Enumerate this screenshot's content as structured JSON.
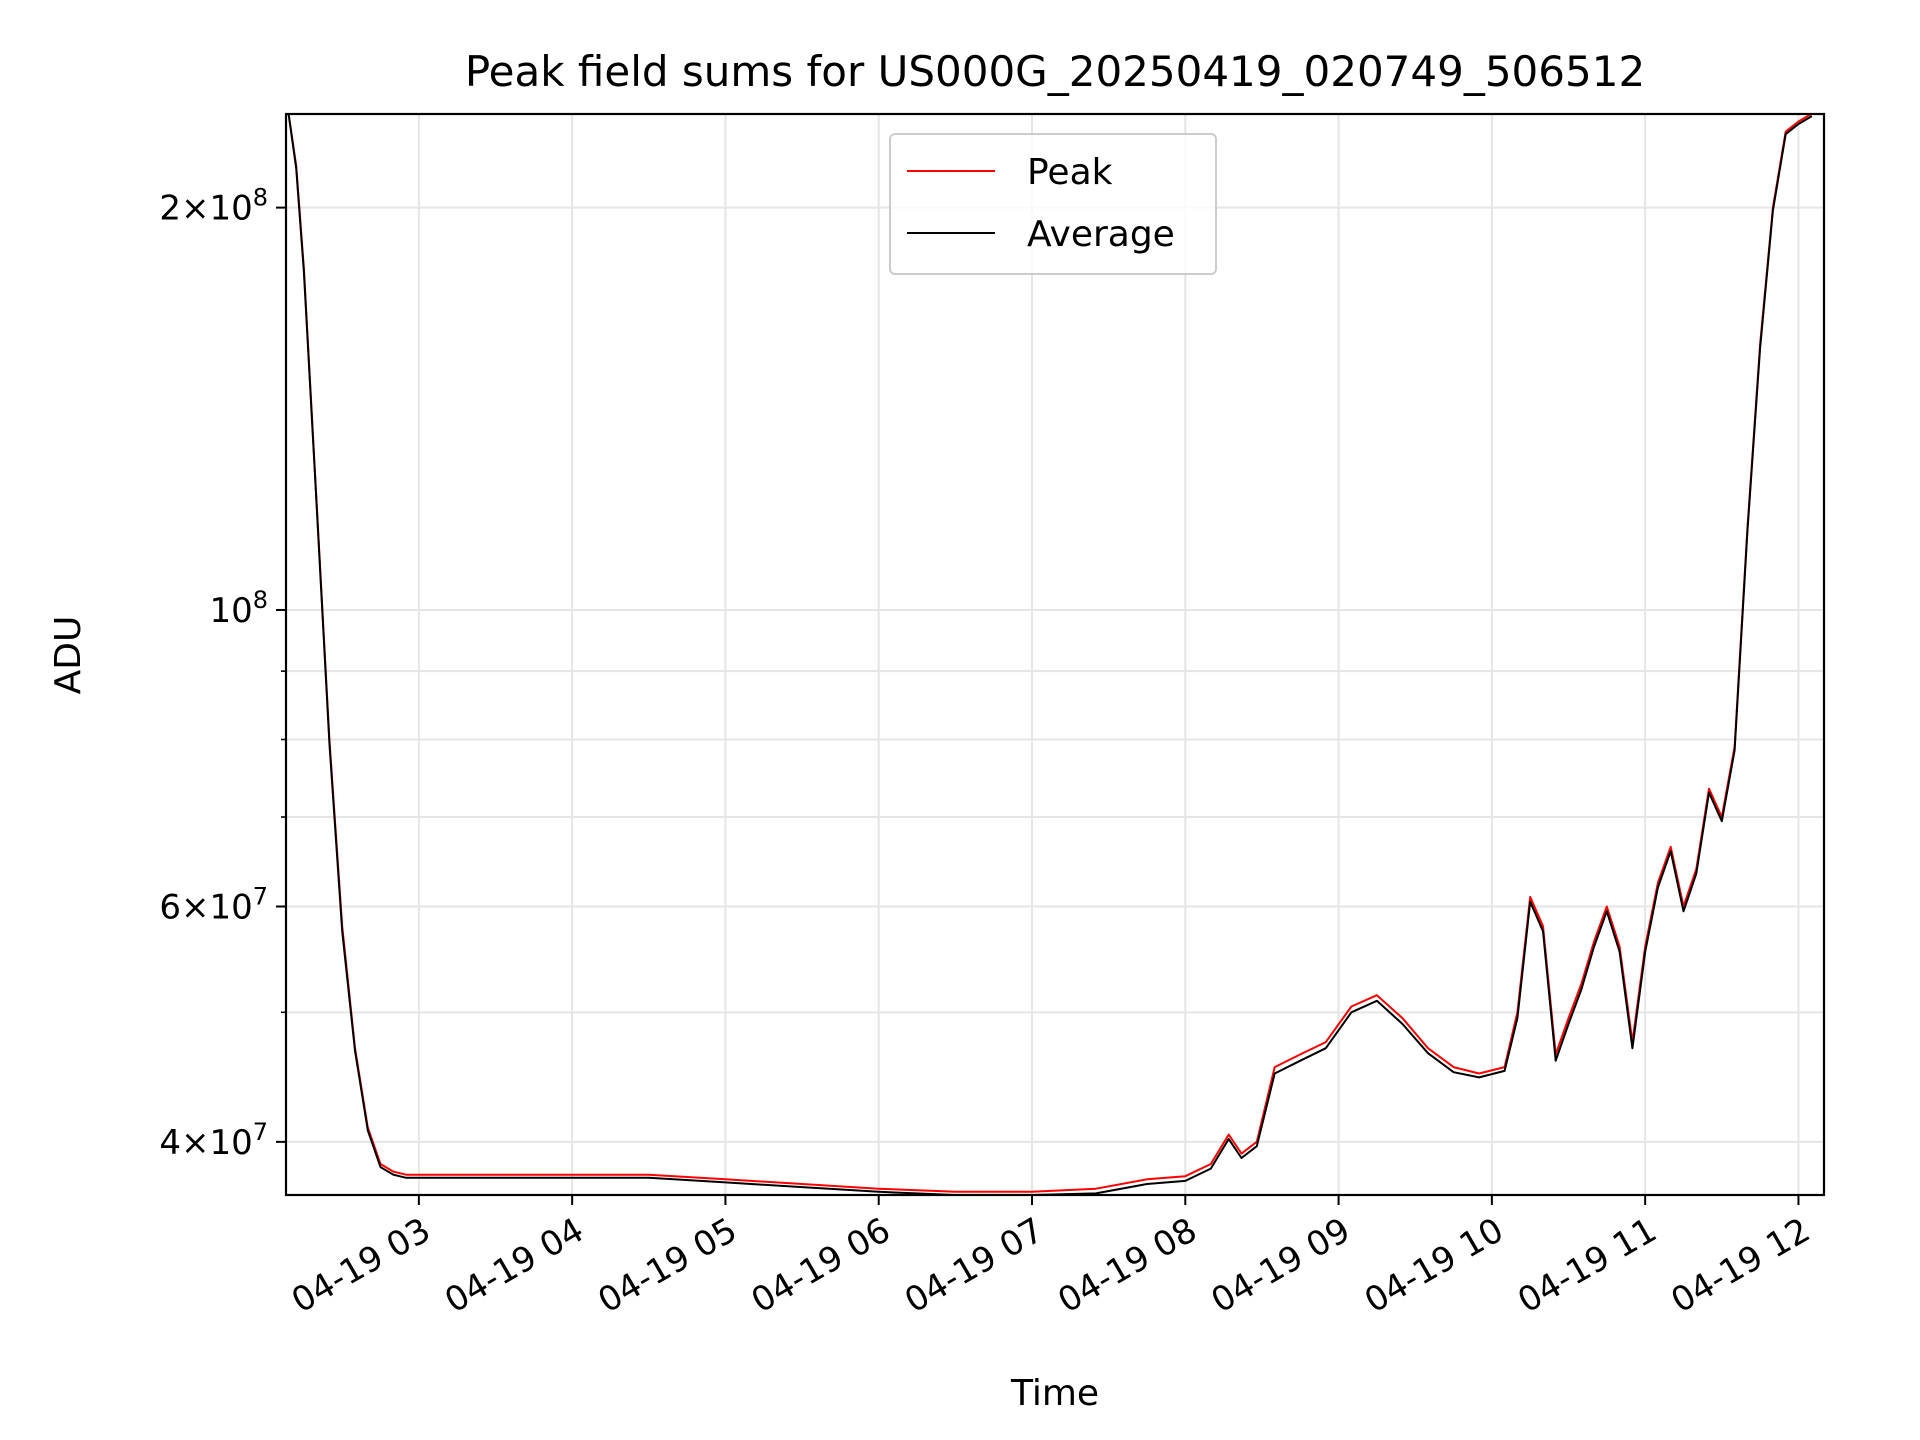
{
  "chart_data": {
    "type": "line",
    "title": "Peak field sums for US000G_20250419_020749_506512",
    "xlabel": "Time",
    "ylabel": "ADU",
    "yscale": "log",
    "ylim": [
      36500000,
      235000000
    ],
    "xlim": [
      "2025-04-19 02:08",
      "2025-04-19 12:10"
    ],
    "grid": true,
    "legend_position": "upper center",
    "x_ticks": [
      {
        "t": "2025-04-19 03:00",
        "label": "04-19 03"
      },
      {
        "t": "2025-04-19 04:00",
        "label": "04-19 04"
      },
      {
        "t": "2025-04-19 05:00",
        "label": "04-19 05"
      },
      {
        "t": "2025-04-19 06:00",
        "label": "04-19 06"
      },
      {
        "t": "2025-04-19 07:00",
        "label": "04-19 07"
      },
      {
        "t": "2025-04-19 08:00",
        "label": "04-19 08"
      },
      {
        "t": "2025-04-19 09:00",
        "label": "04-19 09"
      },
      {
        "t": "2025-04-19 10:00",
        "label": "04-19 10"
      },
      {
        "t": "2025-04-19 11:00",
        "label": "04-19 11"
      },
      {
        "t": "2025-04-19 12:00",
        "label": "04-19 12"
      }
    ],
    "y_ticks": [
      {
        "value": 40000000,
        "base": "4",
        "exp": "7"
      },
      {
        "value": 60000000,
        "base": "6",
        "exp": "7"
      },
      {
        "value": 100000000,
        "base": "",
        "exp": "8"
      },
      {
        "value": 200000000,
        "base": "2",
        "exp": "8"
      }
    ],
    "y_minor_ticks": [
      50000000,
      70000000,
      80000000,
      90000000,
      300000000
    ],
    "series": [
      {
        "name": "Peak",
        "color": "#ff0000",
        "x": [
          "2025-04-19 02:09",
          "2025-04-19 02:12",
          "2025-04-19 02:15",
          "2025-04-19 02:20",
          "2025-04-19 02:25",
          "2025-04-19 02:30",
          "2025-04-19 02:35",
          "2025-04-19 02:40",
          "2025-04-19 02:45",
          "2025-04-19 02:50",
          "2025-04-19 02:55",
          "2025-04-19 03:00",
          "2025-04-19 03:30",
          "2025-04-19 04:00",
          "2025-04-19 04:30",
          "2025-04-19 05:00",
          "2025-04-19 05:30",
          "2025-04-19 06:00",
          "2025-04-19 06:30",
          "2025-04-19 07:00",
          "2025-04-19 07:25",
          "2025-04-19 07:45",
          "2025-04-19 08:00",
          "2025-04-19 08:10",
          "2025-04-19 08:17",
          "2025-04-19 08:22",
          "2025-04-19 08:28",
          "2025-04-19 08:35",
          "2025-04-19 08:45",
          "2025-04-19 08:55",
          "2025-04-19 09:05",
          "2025-04-19 09:15",
          "2025-04-19 09:25",
          "2025-04-19 09:35",
          "2025-04-19 09:45",
          "2025-04-19 09:55",
          "2025-04-19 10:05",
          "2025-04-19 10:10",
          "2025-04-19 10:15",
          "2025-04-19 10:20",
          "2025-04-19 10:25",
          "2025-04-19 10:30",
          "2025-04-19 10:35",
          "2025-04-19 10:40",
          "2025-04-19 10:45",
          "2025-04-19 10:50",
          "2025-04-19 10:55",
          "2025-04-19 11:00",
          "2025-04-19 11:05",
          "2025-04-19 11:10",
          "2025-04-19 11:15",
          "2025-04-19 11:20",
          "2025-04-19 11:25",
          "2025-04-19 11:30",
          "2025-04-19 11:35",
          "2025-04-19 11:40",
          "2025-04-19 11:45",
          "2025-04-19 11:50",
          "2025-04-19 11:55",
          "2025-04-19 12:00",
          "2025-04-19 12:05"
        ],
        "y": [
          235000000,
          215000000,
          180000000,
          120000000,
          80000000,
          58000000,
          47000000,
          41000000,
          38500000,
          38000000,
          37800000,
          37800000,
          37800000,
          37800000,
          37800000,
          37500000,
          37200000,
          36900000,
          36700000,
          36700000,
          36900000,
          37500000,
          37700000,
          38500000,
          40500000,
          39200000,
          40000000,
          45500000,
          46500000,
          47500000,
          50500000,
          51500000,
          49500000,
          47000000,
          45500000,
          45000000,
          45500000,
          50000000,
          61000000,
          58000000,
          46500000,
          49500000,
          52500000,
          56500000,
          60000000,
          56000000,
          47500000,
          56000000,
          62500000,
          66500000,
          60000000,
          64000000,
          73500000,
          70000000,
          79000000,
          115000000,
          158000000,
          200000000,
          228000000,
          232000000,
          235000000
        ]
      },
      {
        "name": "Average",
        "color": "#000000",
        "x": [
          "2025-04-19 02:09",
          "2025-04-19 02:12",
          "2025-04-19 02:15",
          "2025-04-19 02:20",
          "2025-04-19 02:25",
          "2025-04-19 02:30",
          "2025-04-19 02:35",
          "2025-04-19 02:40",
          "2025-04-19 02:45",
          "2025-04-19 02:50",
          "2025-04-19 02:55",
          "2025-04-19 03:00",
          "2025-04-19 03:30",
          "2025-04-19 04:00",
          "2025-04-19 04:30",
          "2025-04-19 05:00",
          "2025-04-19 05:30",
          "2025-04-19 06:00",
          "2025-04-19 06:30",
          "2025-04-19 07:00",
          "2025-04-19 07:25",
          "2025-04-19 07:45",
          "2025-04-19 08:00",
          "2025-04-19 08:10",
          "2025-04-19 08:17",
          "2025-04-19 08:22",
          "2025-04-19 08:28",
          "2025-04-19 08:35",
          "2025-04-19 08:45",
          "2025-04-19 08:55",
          "2025-04-19 09:05",
          "2025-04-19 09:15",
          "2025-04-19 09:25",
          "2025-04-19 09:35",
          "2025-04-19 09:45",
          "2025-04-19 09:55",
          "2025-04-19 10:05",
          "2025-04-19 10:10",
          "2025-04-19 10:15",
          "2025-04-19 10:20",
          "2025-04-19 10:25",
          "2025-04-19 10:30",
          "2025-04-19 10:35",
          "2025-04-19 10:40",
          "2025-04-19 10:45",
          "2025-04-19 10:50",
          "2025-04-19 10:55",
          "2025-04-19 11:00",
          "2025-04-19 11:05",
          "2025-04-19 11:10",
          "2025-04-19 11:15",
          "2025-04-19 11:20",
          "2025-04-19 11:25",
          "2025-04-19 11:30",
          "2025-04-19 11:35",
          "2025-04-19 11:40",
          "2025-04-19 11:45",
          "2025-04-19 11:50",
          "2025-04-19 11:55",
          "2025-04-19 12:00",
          "2025-04-19 12:05"
        ],
        "y": [
          235000000,
          214000000,
          179000000,
          119500000,
          79500000,
          57500000,
          46800000,
          40800000,
          38300000,
          37800000,
          37600000,
          37600000,
          37600000,
          37600000,
          37600000,
          37300000,
          37000000,
          36700000,
          36500000,
          36500000,
          36600000,
          37200000,
          37400000,
          38200000,
          40200000,
          38900000,
          39700000,
          45000000,
          46000000,
          47000000,
          50000000,
          51000000,
          49000000,
          46600000,
          45100000,
          44700000,
          45200000,
          49500000,
          60500000,
          57500000,
          46000000,
          49000000,
          52000000,
          56000000,
          59500000,
          55500000,
          47000000,
          55500000,
          62000000,
          66000000,
          59500000,
          63500000,
          73000000,
          69500000,
          78500000,
          114500000,
          157000000,
          199000000,
          227000000,
          231000000,
          234000000
        ]
      }
    ]
  }
}
